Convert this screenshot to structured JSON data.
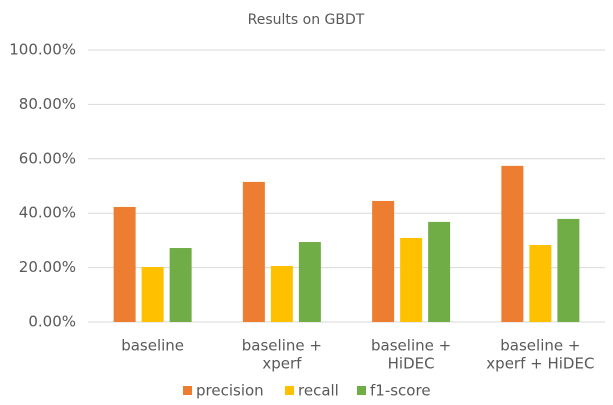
{
  "chart_data": {
    "type": "bar",
    "title": "Results on GBDT",
    "categories": [
      [
        "baseline"
      ],
      [
        "baseline +",
        "xperf"
      ],
      [
        "baseline +",
        "HiDEC"
      ],
      [
        "baseline +",
        "xperf + HiDEC"
      ]
    ],
    "series": [
      {
        "name": "precision",
        "color": "#ED7D31",
        "values": [
          42.3,
          51.5,
          44.5,
          57.4
        ]
      },
      {
        "name": "recall",
        "color": "#FFC000",
        "values": [
          20.2,
          20.6,
          30.9,
          28.3
        ]
      },
      {
        "name": "f1-score",
        "color": "#70AD47",
        "values": [
          27.2,
          29.4,
          36.8,
          37.9
        ]
      }
    ],
    "ylim": [
      0,
      100
    ],
    "yticks": [
      {
        "value": 0,
        "label": "0.00%"
      },
      {
        "value": 20,
        "label": "20.00%"
      },
      {
        "value": 40,
        "label": "40.00%"
      },
      {
        "value": 60,
        "label": "60.00%"
      },
      {
        "value": 80,
        "label": "80.00%"
      },
      {
        "value": 100,
        "label": "100.00%"
      }
    ],
    "grid": true,
    "legend": "bottom"
  }
}
